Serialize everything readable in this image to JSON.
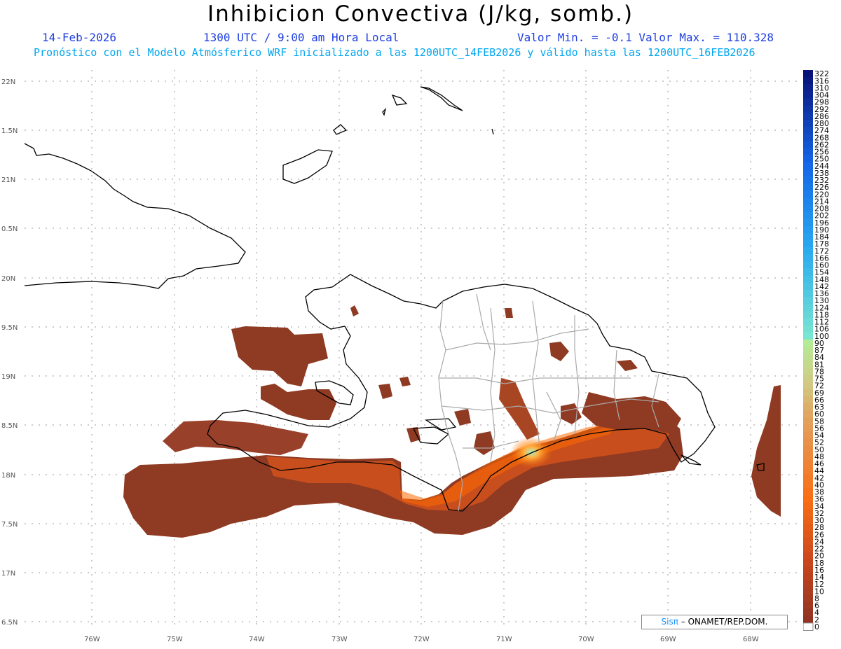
{
  "header": {
    "title": "Inhibicion Convectiva (J/kg, somb.)",
    "date": "14-Feb-2026",
    "time": "1300 UTC / 9:00 am Hora Local",
    "minmax": "Valor Min. = -0.1  Valor Max. = 110.328",
    "subtitle": "Pronóstico con el Modelo Atmósferico WRF inicializado a las 1200UTC_14FEB2026 y válido hasta las  1200UTC_16FEB2026"
  },
  "axes": {
    "lat_labels": [
      "22N",
      "1.5N",
      "21N",
      "0.5N",
      "20N",
      "9.5N",
      "19N",
      "8.5N",
      "18N",
      "7.5N",
      "17N",
      "6.5N"
    ],
    "lon_labels": [
      "76W",
      "75W",
      "74W",
      "73W",
      "72W",
      "71W",
      "70W",
      "69W",
      "68W"
    ]
  },
  "credit": {
    "brand": "Sis",
    "pi": "π",
    "text": "– ONAMET/REP.DOM."
  },
  "colorbar": {
    "labels": [
      "322",
      "316",
      "310",
      "304",
      "298",
      "292",
      "286",
      "280",
      "274",
      "268",
      "262",
      "256",
      "250",
      "244",
      "238",
      "232",
      "226",
      "220",
      "214",
      "208",
      "202",
      "196",
      "190",
      "184",
      "178",
      "172",
      "166",
      "160",
      "154",
      "148",
      "142",
      "136",
      "130",
      "124",
      "118",
      "112",
      "106",
      "100",
      "90",
      "87",
      "84",
      "81",
      "78",
      "75",
      "72",
      "69",
      "66",
      "63",
      "60",
      "58",
      "56",
      "54",
      "52",
      "50",
      "48",
      "46",
      "44",
      "42",
      "40",
      "38",
      "36",
      "34",
      "32",
      "30",
      "28",
      "26",
      "24",
      "22",
      "20",
      "18",
      "16",
      "14",
      "12",
      "10",
      "8",
      "6",
      "4",
      "2",
      "0"
    ]
  },
  "colors": {
    "shade_dark": "#8a3520",
    "shade_mid": "#c8461c",
    "shade_hot": "#ff6a00",
    "shade_max": "#8ee0b0",
    "coast": "#000000",
    "provinces": "#aaaaaa"
  }
}
